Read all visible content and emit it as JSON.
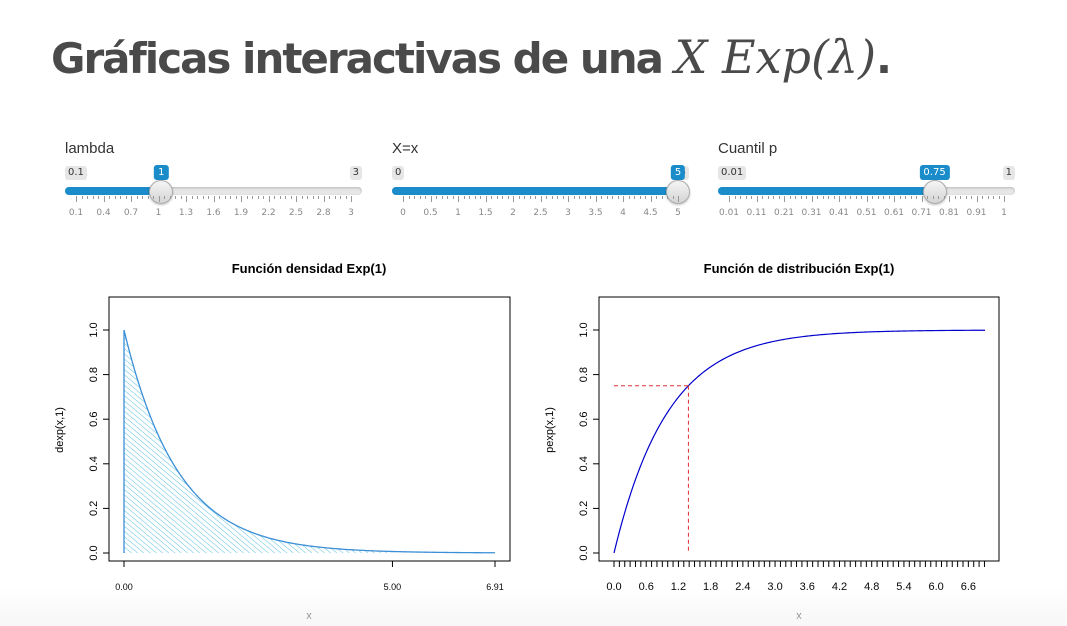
{
  "title": {
    "prefix": "Gráficas interactivas de una ",
    "math": "X Exp(λ)",
    "suffix": "."
  },
  "sliders": [
    {
      "id": "lambda",
      "label": "lambda",
      "min": 0.1,
      "max": 3,
      "value": 1,
      "min_label": "0.1",
      "max_label": "3",
      "value_label": "1",
      "ticks": [
        "0.1",
        "0.4",
        "0.7",
        "1",
        "1.3",
        "1.6",
        "1.9",
        "2.2",
        "2.5",
        "2.8",
        "3"
      ]
    },
    {
      "id": "x",
      "label": "X=x",
      "min": 0,
      "max": 5,
      "value": 5,
      "min_label": "0",
      "max_label": "5",
      "value_label": "5",
      "ticks": [
        "0",
        "0.5",
        "1",
        "1.5",
        "2",
        "2.5",
        "3",
        "3.5",
        "4",
        "4.5",
        "5"
      ]
    },
    {
      "id": "p",
      "label": "Cuantil p",
      "min": 0.01,
      "max": 1,
      "value": 0.75,
      "min_label": "0.01",
      "max_label": "1",
      "value_label": "0.75",
      "ticks": [
        "0.01",
        "0.11",
        "0.21",
        "0.31",
        "0.41",
        "0.51",
        "0.61",
        "0.71",
        "0.81",
        "0.91",
        "1"
      ]
    }
  ],
  "chart_data": [
    {
      "type": "area",
      "title": "Función densidad Exp(1)",
      "xlabel": "x",
      "ylabel": "dexp(x,1)",
      "lambda": 1,
      "xlim": [
        0,
        6.91
      ],
      "ylim": [
        0,
        1
      ],
      "x_tick_labels": [
        "0.00",
        "5.00",
        "6.91"
      ],
      "x_ticks": [
        0,
        5,
        6.91
      ],
      "y_ticks": [
        0,
        0.2,
        0.4,
        0.6,
        0.8,
        1.0
      ],
      "y_tick_labels": [
        "0.0",
        "0.2",
        "0.4",
        "0.6",
        "0.8",
        "1.0"
      ],
      "shaded_range": [
        0,
        5
      ],
      "colors": {
        "curve": "#3b8fd6",
        "fill": "#5bc0de"
      }
    },
    {
      "type": "line",
      "title": "Función de distribución Exp(1)",
      "xlabel": "x",
      "ylabel": "pexp(x,1)",
      "lambda": 1,
      "xlim": [
        0,
        6.91
      ],
      "ylim": [
        0,
        1
      ],
      "x_tick_labels": [
        "0.0",
        "0.6",
        "1.2",
        "1.8",
        "2.4",
        "3.0",
        "3.6",
        "4.2",
        "4.8",
        "5.4",
        "6.0",
        "6.6"
      ],
      "x_ticks": [
        0,
        0.6,
        1.2,
        1.8,
        2.4,
        3.0,
        3.6,
        4.2,
        4.8,
        5.4,
        6.0,
        6.6
      ],
      "y_ticks": [
        0,
        0.2,
        0.4,
        0.6,
        0.8,
        1.0
      ],
      "y_tick_labels": [
        "0.0",
        "0.2",
        "0.4",
        "0.6",
        "0.8",
        "1.0"
      ],
      "quantile": {
        "p": 0.75,
        "x": 1.386
      },
      "colors": {
        "curve": "#0000cc",
        "guide": "#e03030"
      }
    }
  ]
}
